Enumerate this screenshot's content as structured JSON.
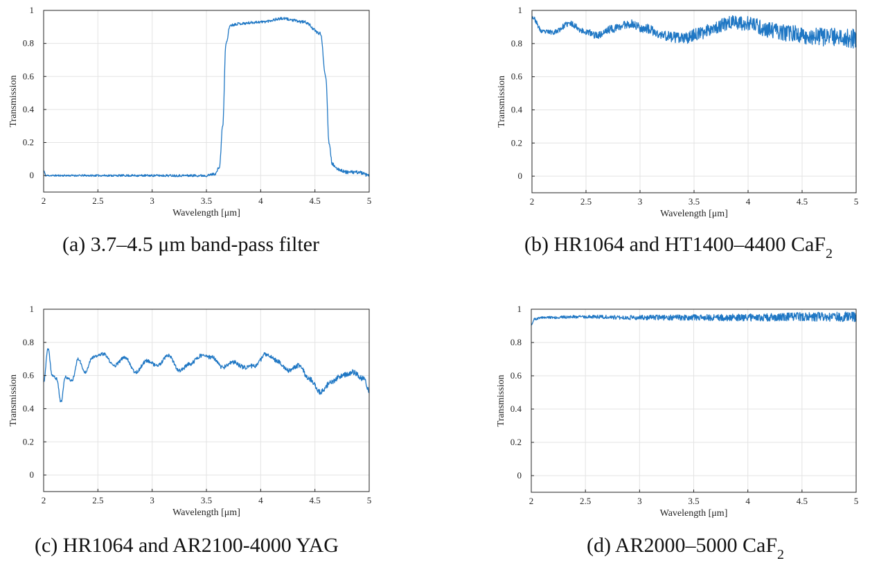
{
  "chart_data": [
    {
      "type": "line",
      "caption": {
        "main": "(a) 3.7–4.5 μm band-pass filter",
        "sub": ""
      },
      "xlabel": "Wavelength [μm]",
      "ylabel": "Transmission",
      "xlim": [
        2,
        5
      ],
      "ylim": [
        -0.1,
        1
      ],
      "xticks": [
        "2",
        "2.5",
        "3",
        "3.5",
        "4",
        "4.5",
        "5"
      ],
      "yticks": [
        "0",
        "0.2",
        "0.4",
        "0.6",
        "0.8",
        "1"
      ],
      "grid": true,
      "color": "#1f77c4",
      "noise": 0.005,
      "series": [
        {
          "x": [
            2.0,
            2.02,
            2.1,
            3.0,
            3.5,
            3.58,
            3.62,
            3.65,
            3.68,
            3.72,
            3.8,
            4.0,
            4.2,
            4.4,
            4.55,
            4.6,
            4.63,
            4.66,
            4.7,
            4.8,
            4.9,
            5.0
          ],
          "y": [
            0.03,
            0.0,
            0.0,
            0.0,
            0.0,
            0.01,
            0.05,
            0.3,
            0.8,
            0.91,
            0.92,
            0.93,
            0.95,
            0.93,
            0.86,
            0.6,
            0.2,
            0.07,
            0.04,
            0.02,
            0.02,
            0.0
          ]
        }
      ]
    },
    {
      "type": "line",
      "caption": {
        "main": "(b) HR1064 and HT1400–4400 CaF",
        "sub": "2"
      },
      "xlabel": "Wavelength [μm]",
      "ylabel": "Transmission",
      "xlim": [
        2,
        5
      ],
      "ylim": [
        -0.1,
        1
      ],
      "xticks": [
        "2",
        "2.5",
        "3",
        "3.5",
        "4",
        "4.5",
        "5"
      ],
      "yticks": [
        "0",
        "0.2",
        "0.4",
        "0.6",
        "0.8",
        "1"
      ],
      "grid": true,
      "color": "#1f77c4",
      "noise": 0.012,
      "series": [
        {
          "x": [
            2.0,
            2.1,
            2.2,
            2.35,
            2.5,
            2.6,
            2.75,
            2.9,
            3.05,
            3.2,
            3.4,
            3.55,
            3.7,
            3.85,
            4.0,
            4.2,
            4.4,
            4.6,
            4.8,
            5.0
          ],
          "y": [
            0.96,
            0.87,
            0.87,
            0.92,
            0.87,
            0.85,
            0.89,
            0.92,
            0.89,
            0.85,
            0.83,
            0.86,
            0.9,
            0.93,
            0.92,
            0.88,
            0.86,
            0.84,
            0.84,
            0.83
          ]
        }
      ]
    },
    {
      "type": "line",
      "caption": {
        "main": "(c) HR1064 and AR2100-4000 YAG",
        "sub": ""
      },
      "xlabel": "Wavelength [μm]",
      "ylabel": "Transmission",
      "xlim": [
        2,
        5
      ],
      "ylim": [
        -0.1,
        1
      ],
      "xticks": [
        "2",
        "2.5",
        "3",
        "3.5",
        "4",
        "4.5",
        "5"
      ],
      "yticks": [
        "0",
        "0.2",
        "0.4",
        "0.6",
        "0.8",
        "1"
      ],
      "grid": true,
      "color": "#1f77c4",
      "noise": 0.008,
      "series": [
        {
          "x": [
            2.0,
            2.04,
            2.08,
            2.12,
            2.16,
            2.2,
            2.26,
            2.32,
            2.38,
            2.45,
            2.55,
            2.65,
            2.75,
            2.85,
            2.95,
            3.05,
            3.15,
            3.25,
            3.35,
            3.45,
            3.55,
            3.65,
            3.75,
            3.85,
            3.95,
            4.05,
            4.15,
            4.25,
            4.35,
            4.45,
            4.55,
            4.65,
            4.75,
            4.85,
            4.95,
            5.0
          ],
          "y": [
            0.56,
            0.76,
            0.6,
            0.58,
            0.44,
            0.59,
            0.57,
            0.7,
            0.62,
            0.71,
            0.73,
            0.66,
            0.71,
            0.62,
            0.69,
            0.66,
            0.72,
            0.63,
            0.67,
            0.72,
            0.71,
            0.65,
            0.68,
            0.65,
            0.66,
            0.73,
            0.69,
            0.63,
            0.66,
            0.58,
            0.5,
            0.56,
            0.6,
            0.62,
            0.58,
            0.51
          ]
        }
      ]
    },
    {
      "type": "line",
      "caption": {
        "main": "(d) AR2000–5000 CaF",
        "sub": "2"
      },
      "xlabel": "Wavelength [μm]",
      "ylabel": "Transmission",
      "xlim": [
        2,
        5
      ],
      "ylim": [
        -0.1,
        1
      ],
      "xticks": [
        "2",
        "2.5",
        "3",
        "3.5",
        "4",
        "4.5",
        "5"
      ],
      "yticks": [
        "0",
        "0.2",
        "0.4",
        "0.6",
        "0.8",
        "1"
      ],
      "grid": true,
      "color": "#1f77c4",
      "noise": 0.006,
      "series": [
        {
          "x": [
            2.0,
            2.03,
            2.1,
            2.5,
            3.0,
            3.5,
            4.0,
            4.5,
            5.0
          ],
          "y": [
            0.91,
            0.94,
            0.95,
            0.955,
            0.95,
            0.95,
            0.95,
            0.955,
            0.955
          ]
        }
      ]
    }
  ]
}
